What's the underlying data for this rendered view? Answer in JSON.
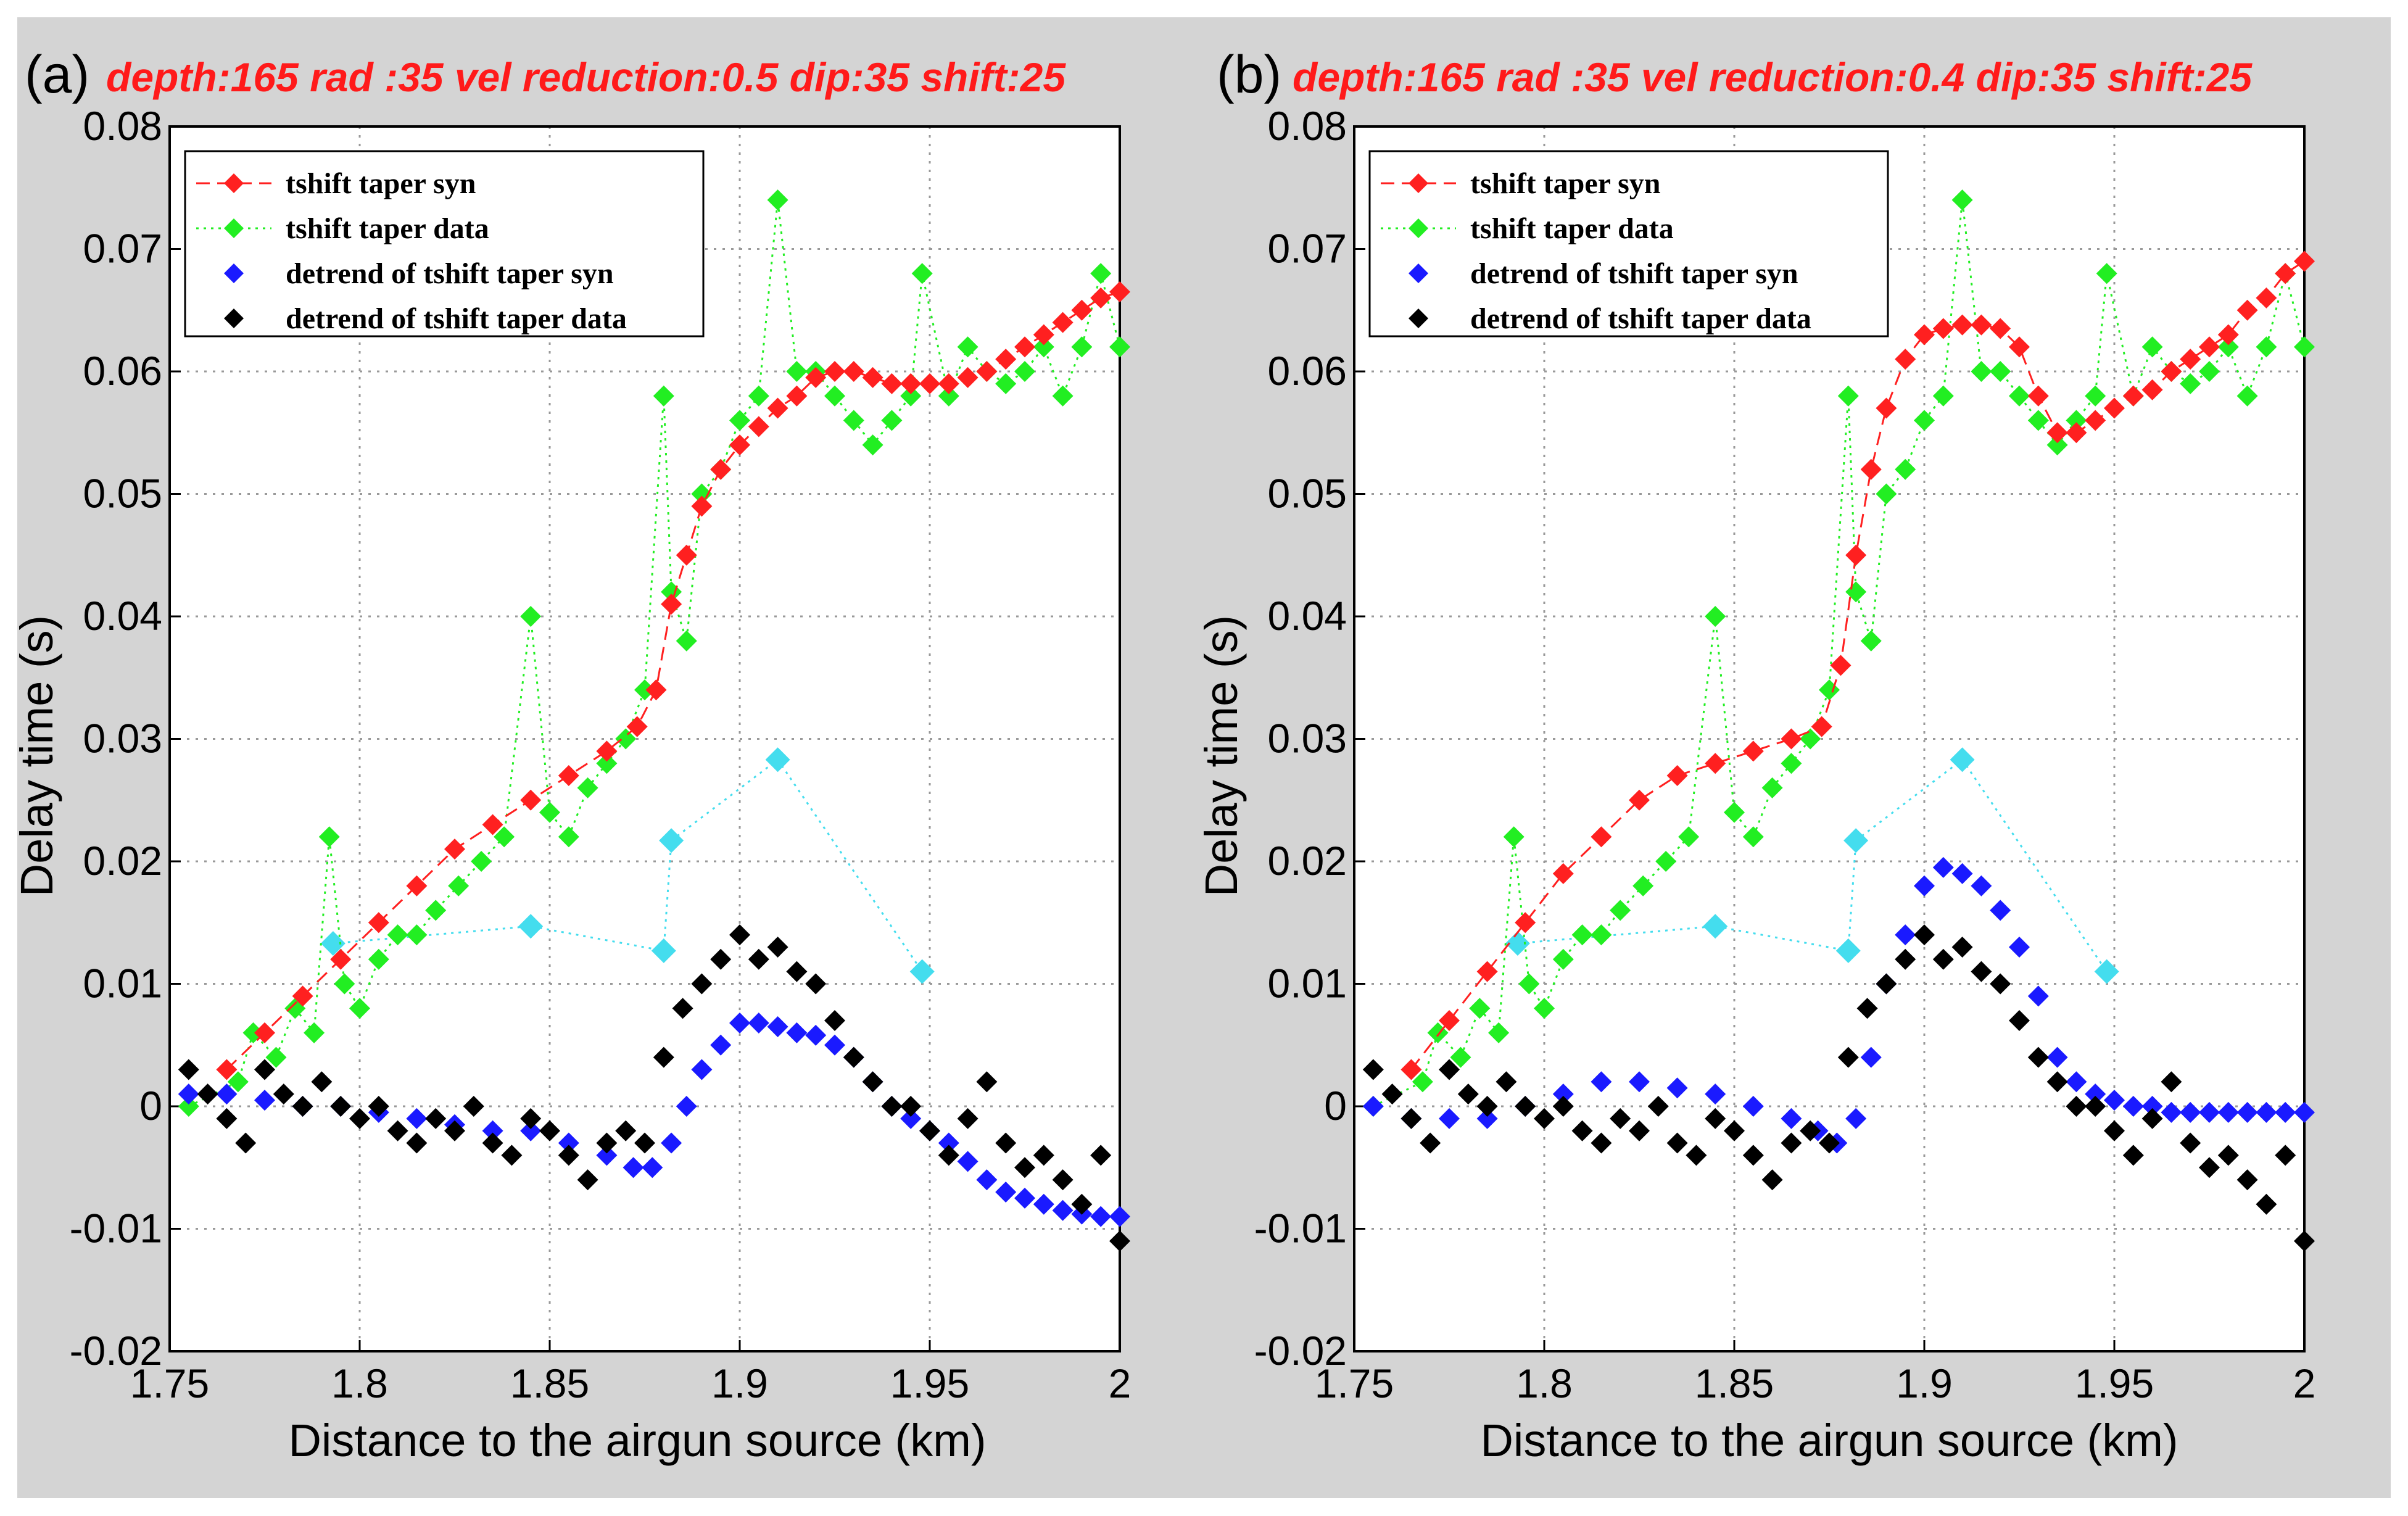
{
  "chart_data": [
    {
      "type": "scatter",
      "panel_label": "(a)",
      "title": "depth:165 rad :35 vel reduction:0.5 dip:35 shift:25",
      "xlabel": "Distance to the airgun source (km)",
      "ylabel": "Delay time (s)",
      "xlim": [
        1.75,
        2.0
      ],
      "ylim": [
        -0.02,
        0.08
      ],
      "xticks": [
        "1.75",
        "1.8",
        "1.85",
        "1.9",
        "1.95",
        "2"
      ],
      "yticks": [
        "-0.02",
        "-0.01",
        "0",
        "0.01",
        "0.02",
        "0.03",
        "0.04",
        "0.05",
        "0.06",
        "0.07",
        "0.08"
      ],
      "grid": true,
      "legend_position": "top-left",
      "series": [
        {
          "name": "tshift taper syn",
          "color": "#ff2020",
          "style": "dashed-diamond",
          "x": [
            1.765,
            1.775,
            1.785,
            1.795,
            1.805,
            1.815,
            1.825,
            1.835,
            1.845,
            1.855,
            1.865,
            1.873,
            1.878,
            1.882,
            1.886,
            1.89,
            1.895,
            1.9,
            1.905,
            1.91,
            1.915,
            1.92,
            1.925,
            1.93,
            1.935,
            1.94,
            1.945,
            1.95,
            1.955,
            1.96,
            1.965,
            1.97,
            1.975,
            1.98,
            1.985,
            1.99,
            1.995,
            2.0
          ],
          "y": [
            0.003,
            0.006,
            0.009,
            0.012,
            0.015,
            0.018,
            0.021,
            0.023,
            0.025,
            0.027,
            0.029,
            0.031,
            0.034,
            0.041,
            0.045,
            0.049,
            0.052,
            0.054,
            0.0555,
            0.057,
            0.058,
            0.0595,
            0.06,
            0.06,
            0.0595,
            0.059,
            0.059,
            0.059,
            0.059,
            0.0595,
            0.06,
            0.061,
            0.062,
            0.063,
            0.064,
            0.065,
            0.066,
            0.0665
          ]
        },
        {
          "name": "tshift taper data",
          "color": "#22ee22",
          "style": "dotted-diamond",
          "x": [
            1.755,
            1.768,
            1.772,
            1.778,
            1.783,
            1.788,
            1.792,
            1.796,
            1.8,
            1.805,
            1.81,
            1.815,
            1.82,
            1.826,
            1.832,
            1.838,
            1.845,
            1.85,
            1.855,
            1.86,
            1.865,
            1.87,
            1.875,
            1.88,
            1.882,
            1.886,
            1.89,
            1.895,
            1.9,
            1.905,
            1.91,
            1.915,
            1.92,
            1.925,
            1.93,
            1.935,
            1.94,
            1.945,
            1.948,
            1.955,
            1.96,
            1.965,
            1.97,
            1.975,
            1.98,
            1.985,
            1.99,
            1.995,
            2.0
          ],
          "y": [
            0.0,
            0.002,
            0.006,
            0.004,
            0.008,
            0.006,
            0.022,
            0.01,
            0.008,
            0.012,
            0.014,
            0.014,
            0.016,
            0.018,
            0.02,
            0.022,
            0.04,
            0.024,
            0.022,
            0.026,
            0.028,
            0.03,
            0.034,
            0.058,
            0.042,
            0.038,
            0.05,
            0.052,
            0.056,
            0.058,
            0.074,
            0.06,
            0.06,
            0.058,
            0.056,
            0.054,
            0.056,
            0.058,
            0.068,
            0.058,
            0.062,
            0.06,
            0.059,
            0.06,
            0.062,
            0.058,
            0.062,
            0.068,
            0.062
          ]
        },
        {
          "name": "detrend of tshift taper syn",
          "color": "#1a1aff",
          "style": "diamond",
          "x": [
            1.755,
            1.765,
            1.775,
            1.785,
            1.795,
            1.805,
            1.815,
            1.825,
            1.835,
            1.845,
            1.855,
            1.865,
            1.872,
            1.877,
            1.882,
            1.886,
            1.89,
            1.895,
            1.9,
            1.905,
            1.91,
            1.915,
            1.92,
            1.925,
            1.93,
            1.935,
            1.94,
            1.945,
            1.95,
            1.955,
            1.96,
            1.965,
            1.97,
            1.975,
            1.98,
            1.985,
            1.99,
            1.995,
            2.0
          ],
          "y": [
            0.001,
            0.001,
            0.0005,
            0.0,
            0.0,
            -0.0005,
            -0.001,
            -0.0015,
            -0.002,
            -0.002,
            -0.003,
            -0.004,
            -0.005,
            -0.005,
            -0.003,
            0.0,
            0.003,
            0.005,
            0.0068,
            0.0068,
            0.0065,
            0.006,
            0.0058,
            0.005,
            0.004,
            0.002,
            0.0,
            -0.001,
            -0.002,
            -0.003,
            -0.0045,
            -0.006,
            -0.007,
            -0.0075,
            -0.008,
            -0.0085,
            -0.0088,
            -0.009,
            -0.009
          ]
        },
        {
          "name": "detrend of tshift taper data",
          "color": "#000000",
          "style": "diamond",
          "x": [
            1.755,
            1.76,
            1.765,
            1.77,
            1.775,
            1.78,
            1.785,
            1.79,
            1.795,
            1.8,
            1.805,
            1.81,
            1.815,
            1.82,
            1.825,
            1.83,
            1.835,
            1.84,
            1.845,
            1.85,
            1.855,
            1.86,
            1.865,
            1.87,
            1.875,
            1.88,
            1.885,
            1.89,
            1.895,
            1.9,
            1.905,
            1.91,
            1.915,
            1.92,
            1.925,
            1.93,
            1.935,
            1.94,
            1.945,
            1.95,
            1.955,
            1.96,
            1.965,
            1.97,
            1.975,
            1.98,
            1.985,
            1.99,
            1.995,
            2.0
          ],
          "y": [
            0.003,
            0.001,
            -0.001,
            -0.003,
            0.003,
            0.001,
            0.0,
            0.002,
            0.0,
            -0.001,
            0.0,
            -0.002,
            -0.003,
            -0.001,
            -0.002,
            0.0,
            -0.003,
            -0.004,
            -0.001,
            -0.002,
            -0.004,
            -0.006,
            -0.003,
            -0.002,
            -0.003,
            0.004,
            0.008,
            0.01,
            0.012,
            0.014,
            0.012,
            0.013,
            0.011,
            0.01,
            0.007,
            0.004,
            0.002,
            0.0,
            0.0,
            -0.002,
            -0.004,
            -0.001,
            0.002,
            -0.003,
            -0.005,
            -0.004,
            -0.006,
            -0.008,
            -0.004,
            -0.011
          ]
        },
        {
          "name": "",
          "color": "#44ddee",
          "style": "dotted-diamond",
          "x": [
            1.793,
            1.845,
            1.88,
            1.882,
            1.91,
            1.948
          ],
          "y": [
            0.0133,
            0.0147,
            0.0127,
            0.0217,
            0.0283,
            0.011
          ]
        }
      ]
    },
    {
      "type": "scatter",
      "panel_label": "(b)",
      "title": "depth:165 rad :35 vel reduction:0.4 dip:35 shift:25",
      "xlabel": "Distance to the airgun source (km)",
      "ylabel": "Delay time (s)",
      "xlim": [
        1.75,
        2.0
      ],
      "ylim": [
        -0.02,
        0.08
      ],
      "xticks": [
        "1.75",
        "1.8",
        "1.85",
        "1.9",
        "1.95",
        "2"
      ],
      "yticks": [
        "-0.02",
        "-0.01",
        "0",
        "0.01",
        "0.02",
        "0.03",
        "0.04",
        "0.05",
        "0.06",
        "0.07",
        "0.08"
      ],
      "grid": true,
      "legend_position": "top-left",
      "series": [
        {
          "name": "tshift taper syn",
          "color": "#ff2020",
          "style": "dashed-diamond",
          "x": [
            1.765,
            1.775,
            1.785,
            1.795,
            1.805,
            1.815,
            1.825,
            1.835,
            1.845,
            1.855,
            1.865,
            1.873,
            1.878,
            1.882,
            1.886,
            1.89,
            1.895,
            1.9,
            1.905,
            1.91,
            1.915,
            1.92,
            1.925,
            1.93,
            1.935,
            1.94,
            1.945,
            1.95,
            1.955,
            1.96,
            1.965,
            1.97,
            1.975,
            1.98,
            1.985,
            1.99,
            1.995,
            2.0
          ],
          "y": [
            0.003,
            0.007,
            0.011,
            0.015,
            0.019,
            0.022,
            0.025,
            0.027,
            0.028,
            0.029,
            0.03,
            0.031,
            0.036,
            0.045,
            0.052,
            0.057,
            0.061,
            0.063,
            0.0635,
            0.0638,
            0.0638,
            0.0635,
            0.062,
            0.058,
            0.055,
            0.055,
            0.056,
            0.057,
            0.058,
            0.0585,
            0.06,
            0.061,
            0.062,
            0.063,
            0.065,
            0.066,
            0.068,
            0.069
          ]
        },
        {
          "name": "tshift taper data",
          "color": "#22ee22",
          "style": "dotted-diamond",
          "x": [
            1.755,
            1.768,
            1.772,
            1.778,
            1.783,
            1.788,
            1.792,
            1.796,
            1.8,
            1.805,
            1.81,
            1.815,
            1.82,
            1.826,
            1.832,
            1.838,
            1.845,
            1.85,
            1.855,
            1.86,
            1.865,
            1.87,
            1.875,
            1.88,
            1.882,
            1.886,
            1.89,
            1.895,
            1.9,
            1.905,
            1.91,
            1.915,
            1.92,
            1.925,
            1.93,
            1.935,
            1.94,
            1.945,
            1.948,
            1.955,
            1.96,
            1.965,
            1.97,
            1.975,
            1.98,
            1.985,
            1.99,
            1.995,
            2.0
          ],
          "y": [
            0.0,
            0.002,
            0.006,
            0.004,
            0.008,
            0.006,
            0.022,
            0.01,
            0.008,
            0.012,
            0.014,
            0.014,
            0.016,
            0.018,
            0.02,
            0.022,
            0.04,
            0.024,
            0.022,
            0.026,
            0.028,
            0.03,
            0.034,
            0.058,
            0.042,
            0.038,
            0.05,
            0.052,
            0.056,
            0.058,
            0.074,
            0.06,
            0.06,
            0.058,
            0.056,
            0.054,
            0.056,
            0.058,
            0.068,
            0.058,
            0.062,
            0.06,
            0.059,
            0.06,
            0.062,
            0.058,
            0.062,
            0.068,
            0.062
          ]
        },
        {
          "name": "detrend of tshift taper syn",
          "color": "#1a1aff",
          "style": "diamond",
          "x": [
            1.755,
            1.765,
            1.775,
            1.785,
            1.795,
            1.805,
            1.815,
            1.825,
            1.835,
            1.845,
            1.855,
            1.865,
            1.872,
            1.877,
            1.882,
            1.886,
            1.89,
            1.895,
            1.9,
            1.905,
            1.91,
            1.915,
            1.92,
            1.925,
            1.93,
            1.935,
            1.94,
            1.945,
            1.95,
            1.955,
            1.96,
            1.965,
            1.97,
            1.975,
            1.98,
            1.985,
            1.99,
            1.995,
            2.0
          ],
          "y": [
            0.0,
            -0.001,
            -0.001,
            -0.001,
            0.0,
            0.001,
            0.002,
            0.002,
            0.0015,
            0.001,
            0.0,
            -0.001,
            -0.002,
            -0.003,
            -0.001,
            0.004,
            0.01,
            0.014,
            0.018,
            0.0195,
            0.019,
            0.018,
            0.016,
            0.013,
            0.009,
            0.004,
            0.002,
            0.001,
            0.0005,
            0.0,
            0.0,
            -0.0005,
            -0.0005,
            -0.0005,
            -0.0005,
            -0.0005,
            -0.0005,
            -0.0005,
            -0.0005
          ]
        },
        {
          "name": "detrend of tshift taper data",
          "color": "#000000",
          "style": "diamond",
          "x": [
            1.755,
            1.76,
            1.765,
            1.77,
            1.775,
            1.78,
            1.785,
            1.79,
            1.795,
            1.8,
            1.805,
            1.81,
            1.815,
            1.82,
            1.825,
            1.83,
            1.835,
            1.84,
            1.845,
            1.85,
            1.855,
            1.86,
            1.865,
            1.87,
            1.875,
            1.88,
            1.885,
            1.89,
            1.895,
            1.9,
            1.905,
            1.91,
            1.915,
            1.92,
            1.925,
            1.93,
            1.935,
            1.94,
            1.945,
            1.95,
            1.955,
            1.96,
            1.965,
            1.97,
            1.975,
            1.98,
            1.985,
            1.99,
            1.995,
            2.0
          ],
          "y": [
            0.003,
            0.001,
            -0.001,
            -0.003,
            0.003,
            0.001,
            0.0,
            0.002,
            0.0,
            -0.001,
            0.0,
            -0.002,
            -0.003,
            -0.001,
            -0.002,
            0.0,
            -0.003,
            -0.004,
            -0.001,
            -0.002,
            -0.004,
            -0.006,
            -0.003,
            -0.002,
            -0.003,
            0.004,
            0.008,
            0.01,
            0.012,
            0.014,
            0.012,
            0.013,
            0.011,
            0.01,
            0.007,
            0.004,
            0.002,
            0.0,
            0.0,
            -0.002,
            -0.004,
            -0.001,
            0.002,
            -0.003,
            -0.005,
            -0.004,
            -0.006,
            -0.008,
            -0.004,
            -0.011
          ]
        },
        {
          "name": "",
          "color": "#44ddee",
          "style": "dotted-diamond",
          "x": [
            1.793,
            1.845,
            1.88,
            1.882,
            1.91,
            1.948
          ],
          "y": [
            0.0133,
            0.0147,
            0.0127,
            0.0217,
            0.0283,
            0.011
          ]
        }
      ]
    }
  ]
}
